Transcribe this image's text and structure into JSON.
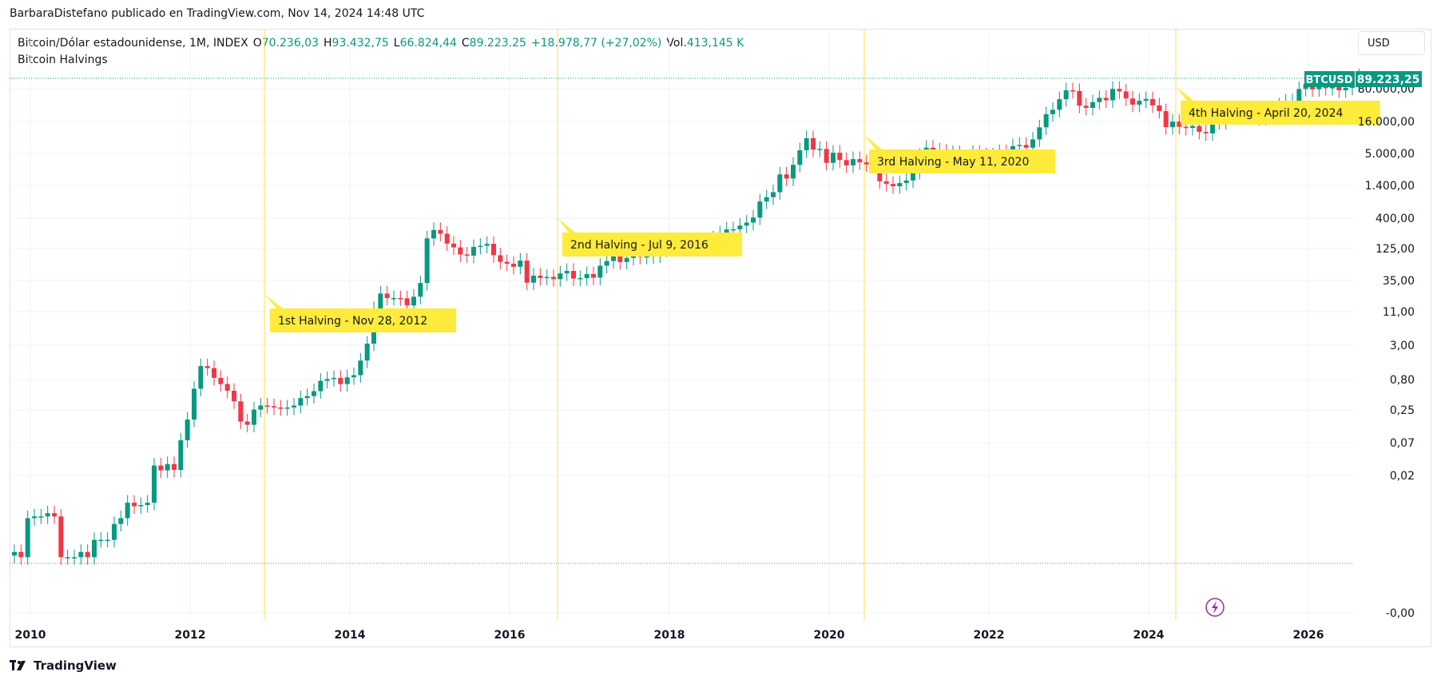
{
  "attribution": "BarbaraDistefano publicado en TradingView.com, Nov 14, 2024 14:48 UTC",
  "legend": {
    "symbol": "Bitcoin/Dólar estadounidense, 1M, INDEX",
    "open_label": "O",
    "open": "70.236,03",
    "high_label": "H",
    "high": "93.432,75",
    "low_label": "L",
    "low": "66.824,44",
    "close_label": "C",
    "close": "89.223,25",
    "change": "+18.978,77 (+27,02%)",
    "vol_label": "Vol.",
    "vol": "413,145 K",
    "indicator": "Bitcoin Halvings"
  },
  "currency_button": "USD",
  "price_tag": {
    "symbol": "BTCUSD",
    "price": "89.223,25"
  },
  "brand": "TradingView",
  "colors": {
    "up": "#089981",
    "down": "#f23645",
    "halving_line": "#fde047",
    "label_bg": "#ffeb3b"
  },
  "chart_data": {
    "type": "candlestick",
    "scale": "log",
    "xlabel": "",
    "ylabel": "",
    "x_ticks": [
      "2010",
      "2012",
      "2014",
      "2016",
      "2018",
      "2020",
      "2022",
      "2024",
      "2026"
    ],
    "y_ticks": [
      "80.000,00",
      "16.000,00",
      "5.000,00",
      "1.400,00",
      "400,00",
      "125,00",
      "35,00",
      "11,00",
      "3,00",
      "0,80",
      "0,25",
      "0,07",
      "0,02",
      "-0,00"
    ],
    "current_price": 89223.25,
    "series": [
      {
        "name": "BTCUSD",
        "values": [
          0.07,
          0.06,
          0.19,
          0.2,
          0.2,
          0.22,
          0.2,
          0.06,
          0.06,
          0.06,
          0.07,
          0.06,
          0.1,
          0.1,
          0.1,
          0.16,
          0.19,
          0.3,
          0.27,
          0.28,
          0.3,
          0.9,
          0.78,
          0.94,
          0.79,
          1.9,
          3.5,
          8.7,
          17,
          16,
          12,
          10,
          8.2,
          6,
          3.3,
          3,
          4.7,
          5.3,
          5.2,
          5,
          4.9,
          5,
          5.3,
          6.6,
          7,
          8.1,
          11,
          11.6,
          12,
          10,
          12.2,
          13,
          20,
          33,
          92,
          145,
          127,
          127,
          126,
          102,
          132,
          198,
          740,
          950,
          850,
          635,
          567,
          460,
          445,
          575,
          595,
          630,
          450,
          370,
          350,
          320,
          384,
          200,
          246,
          230,
          237,
          222,
          263,
          283,
          226,
          229,
          258,
          232,
          330,
          379,
          435,
          368,
          415,
          455,
          430,
          436,
          448,
          530,
          670,
          640,
          608,
          576,
          625,
          571,
          700,
          740,
          860,
          964,
          970,
          1080,
          1180,
          1370,
          2200,
          2500,
          2900,
          4900,
          4340,
          6500,
          10000,
          14300,
          10200,
          10400,
          6900,
          9300,
          7500,
          6400,
          7700,
          7000,
          6600,
          6300,
          4000,
          3700,
          3450,
          3800,
          4100,
          5300,
          8500,
          10800,
          10000,
          9600,
          8300,
          9200,
          7500,
          7200,
          9300,
          8600,
          6400,
          8600,
          9500,
          9100,
          11300,
          11700,
          10800,
          13800,
          19700,
          29000,
          33100,
          45200,
          58900,
          57700,
          37300,
          35000,
          41500,
          47100,
          43800,
          61300,
          57000,
          46200,
          38500,
          43200,
          45500,
          37700,
          31800,
          19800,
          23300,
          20000,
          19400,
          20500,
          17200,
          16500,
          23100,
          23100,
          28500,
          29300,
          27200,
          30500,
          29200,
          25900,
          27000,
          34600,
          37700,
          42300,
          42600,
          61100,
          71300,
          60600,
          67500,
          62700,
          64600,
          58900,
          63300,
          70200,
          89223
        ]
      }
    ],
    "halvings": [
      {
        "label": "1st Halving - Nov 28, 2012",
        "date": "2012-11-28"
      },
      {
        "label": "2nd Halving - Jul 9, 2016",
        "date": "2016-07-09"
      },
      {
        "label": "3rd Halving - May 11, 2020",
        "date": "2020-05-11"
      },
      {
        "label": "4th Halving - April 20, 2024",
        "date": "2024-04-20"
      }
    ]
  }
}
